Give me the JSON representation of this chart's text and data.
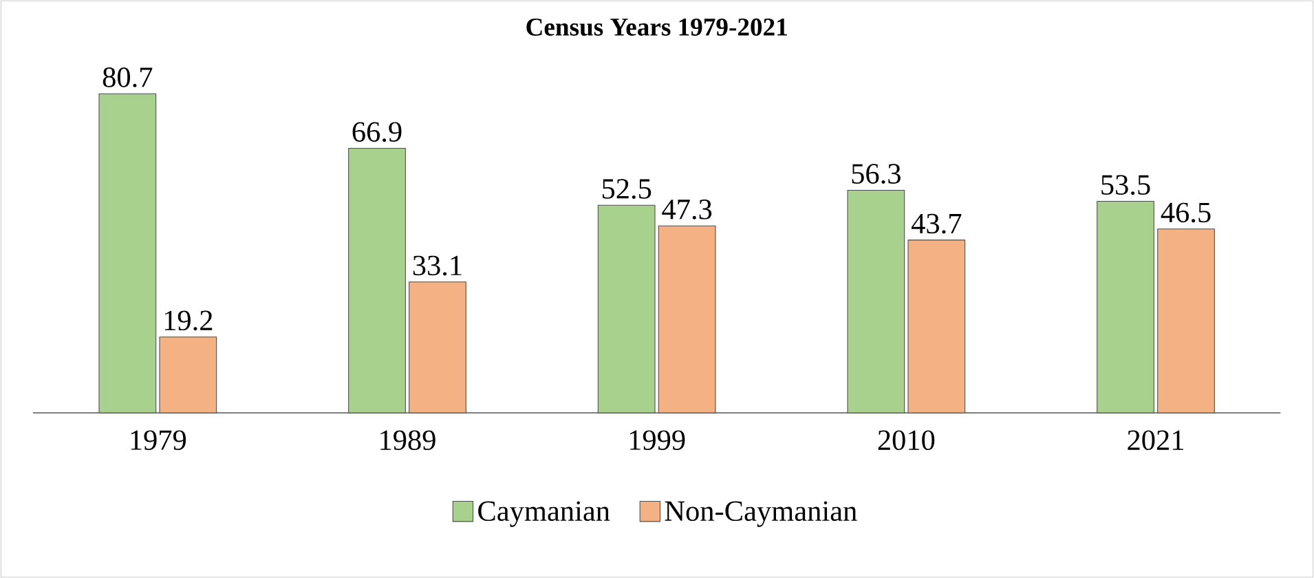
{
  "chart_data": {
    "type": "bar",
    "title": "Census Years 1979-2021",
    "categories": [
      "1979",
      "1989",
      "1999",
      "2010",
      "2021"
    ],
    "series": [
      {
        "name": "Caymanian",
        "color": "#a9d18e",
        "values": [
          80.7,
          66.9,
          52.5,
          56.3,
          53.5
        ]
      },
      {
        "name": "Non-Caymanian",
        "color": "#f4b183",
        "values": [
          19.2,
          33.1,
          47.3,
          43.7,
          46.5
        ]
      }
    ],
    "data_labels": true,
    "legend": "bottom",
    "relative": false
  }
}
